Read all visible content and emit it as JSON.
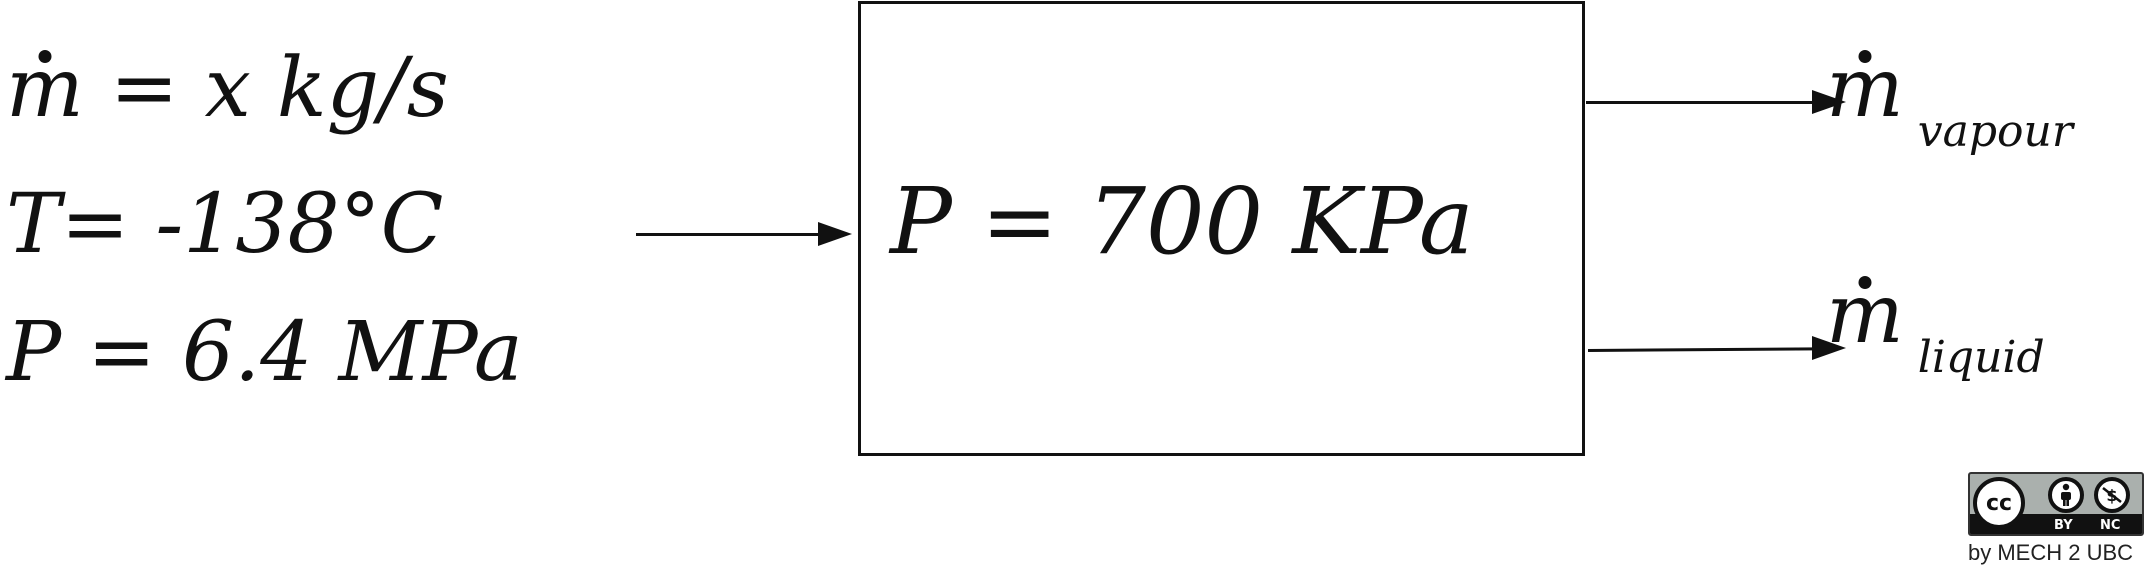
{
  "inlet": {
    "mass_flow_symbol": "m",
    "mass_flow_rest": " = x kg/s",
    "temperature": "T= -138°C",
    "pressure": "P = 6.4 MPa"
  },
  "process": {
    "pressure": "P = 700 KPa"
  },
  "outlets": {
    "vapour": {
      "symbol": "m",
      "subscript": "vapour"
    },
    "liquid": {
      "symbol": "m",
      "subscript": "liquid"
    }
  },
  "license": {
    "cc": "cc",
    "by": "BY",
    "nc": "NC",
    "by_icon": "person-icon",
    "nc_icon": "no-dollar-icon",
    "credit": "by MECH 2 UBC"
  }
}
